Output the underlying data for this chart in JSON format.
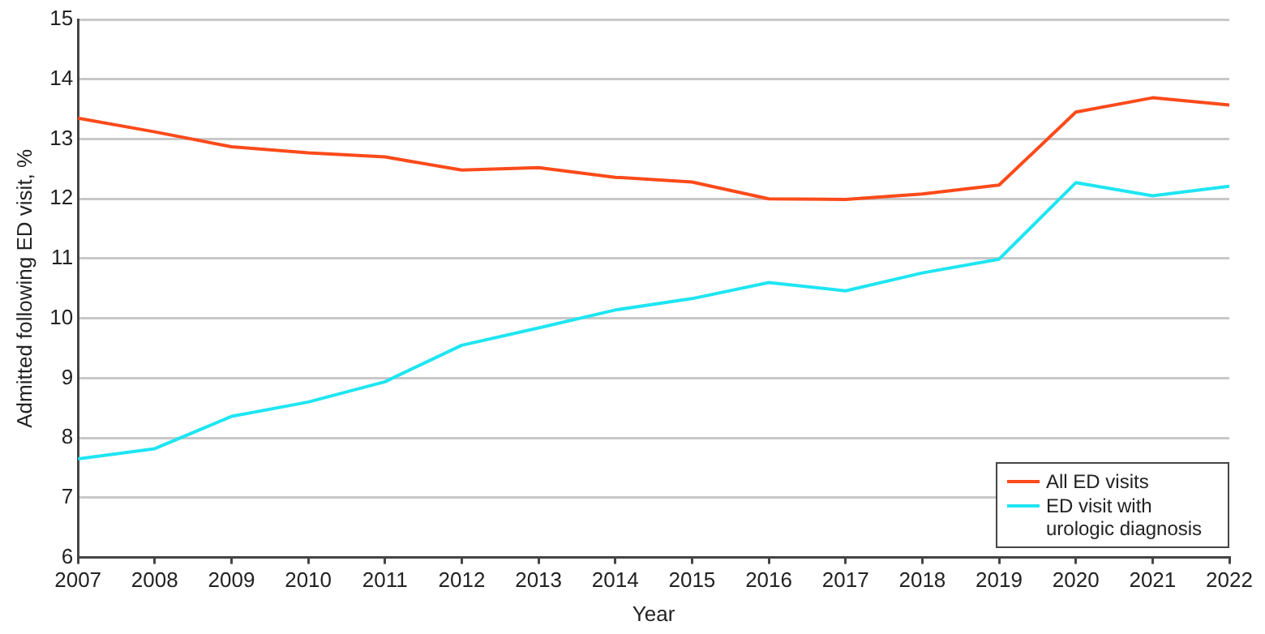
{
  "chart_data": {
    "type": "line",
    "xlabel": "Year",
    "ylabel": "Admitted following ED visit, %",
    "x": [
      2007,
      2008,
      2009,
      2010,
      2011,
      2012,
      2013,
      2014,
      2015,
      2016,
      2017,
      2018,
      2019,
      2020,
      2021,
      2022
    ],
    "series": [
      {
        "name": "All ED visits",
        "color": "#fc4a1a",
        "values": [
          13.35,
          13.12,
          12.87,
          12.77,
          12.7,
          12.48,
          12.52,
          12.36,
          12.28,
          12.0,
          11.99,
          12.08,
          12.23,
          13.45,
          13.69,
          13.57
        ]
      },
      {
        "name": "ED visit with urologic diagnosis",
        "color": "#1fe5f2",
        "values": [
          7.65,
          7.82,
          8.36,
          8.6,
          8.94,
          9.55,
          9.84,
          10.14,
          10.33,
          10.6,
          10.46,
          10.76,
          10.99,
          12.27,
          12.05,
          12.21
        ]
      }
    ],
    "xlim": [
      2007,
      2022
    ],
    "xticks": [
      2007,
      2008,
      2009,
      2010,
      2011,
      2012,
      2013,
      2014,
      2015,
      2016,
      2017,
      2018,
      2019,
      2020,
      2021,
      2022
    ],
    "ylim": [
      6,
      15
    ],
    "yticks": [
      6,
      7,
      8,
      9,
      10,
      11,
      12,
      13,
      14,
      15
    ],
    "grid": "y",
    "legend": "bottom right",
    "marker": "none",
    "line_style": "solid"
  }
}
